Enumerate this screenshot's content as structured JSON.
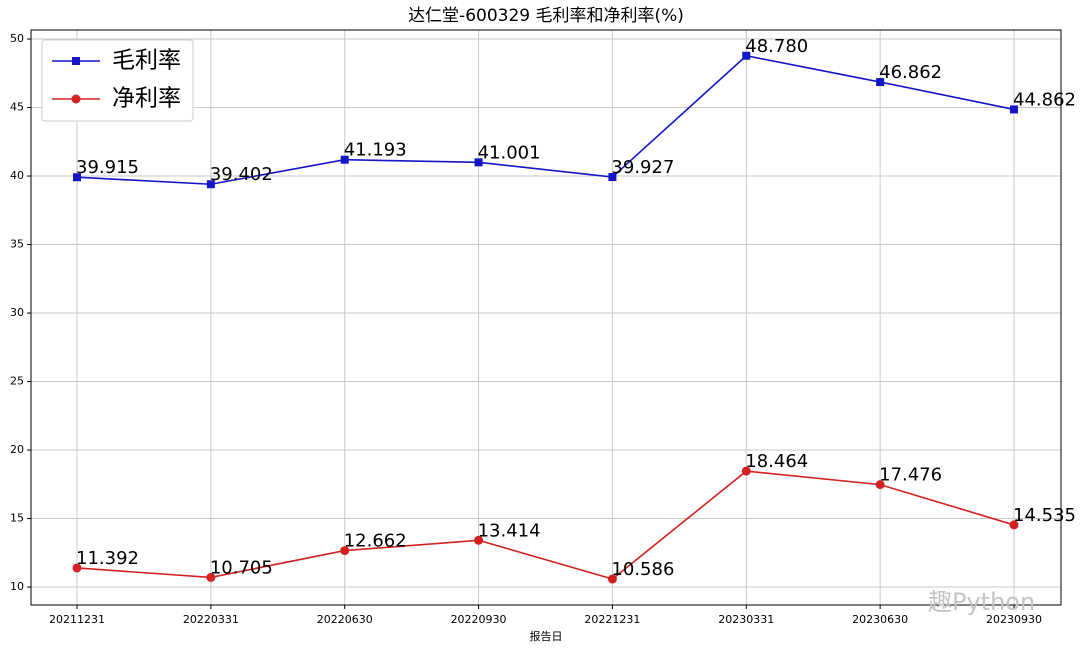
{
  "chart_data": {
    "type": "line",
    "title": "达仁堂-600329 毛利率和净利率(%)",
    "x_label": "报告日",
    "categories": [
      "20211231",
      "20220331",
      "20220630",
      "20220930",
      "20221231",
      "20230331",
      "20230630",
      "20230930"
    ],
    "series": [
      {
        "name": "毛利率",
        "color": "#1515c8",
        "marker": "square",
        "values": [
          39.915,
          39.402,
          41.193,
          41.001,
          39.927,
          48.78,
          46.862,
          44.862
        ],
        "value_labels": [
          "39.915",
          "39.402",
          "41.193",
          "41.001",
          "39.927",
          "48.780",
          "46.862",
          "44.862"
        ]
      },
      {
        "name": "净利率",
        "color": "#d42020",
        "marker": "circle",
        "values": [
          11.392,
          10.705,
          12.662,
          13.414,
          10.586,
          18.464,
          17.476,
          14.535
        ],
        "value_labels": [
          "11.392",
          "10.705",
          "12.662",
          "13.414",
          "10.586",
          "18.464",
          "17.476",
          "14.535"
        ]
      }
    ],
    "ylim": [
      8.69,
      50.66
    ],
    "yticks": [
      10,
      15,
      20,
      25,
      30,
      35,
      40,
      45,
      50
    ],
    "grid": true,
    "legend": "upper-left",
    "watermark": "趣Python"
  }
}
